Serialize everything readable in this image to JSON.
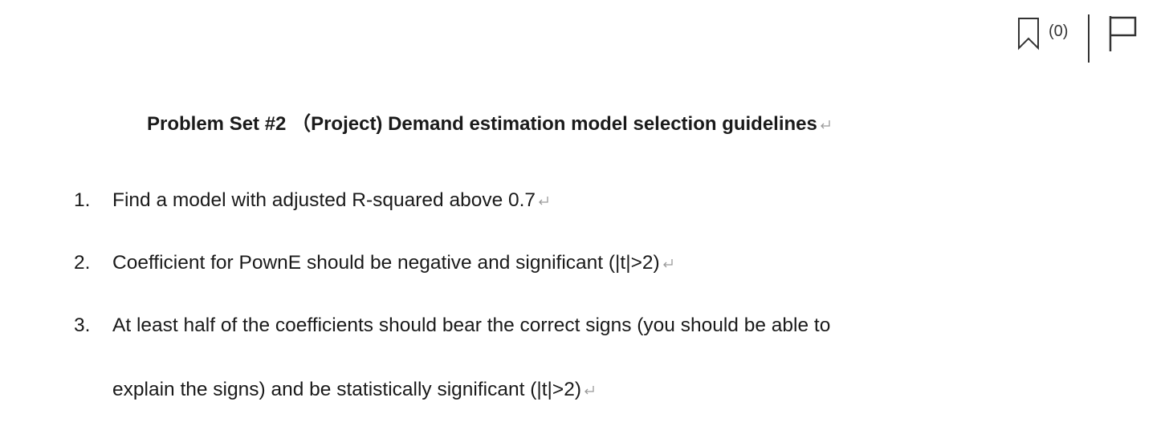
{
  "toolbar": {
    "bookmark_count": "(0)"
  },
  "document": {
    "title": "Problem Set #2 （Project) Demand estimation model selection guidelines",
    "items": [
      {
        "number": "1.",
        "lines": [
          "Find a model with adjusted R-squared above 0.7"
        ]
      },
      {
        "number": "2.",
        "lines": [
          "Coefficient for PownE should be negative and significant (|t|>2)"
        ]
      },
      {
        "number": "3.",
        "lines": [
          "At least half of the coefficients should bear the correct signs (you should be able to",
          "explain the signs) and be statistically significant (|t|>2)"
        ]
      }
    ]
  }
}
